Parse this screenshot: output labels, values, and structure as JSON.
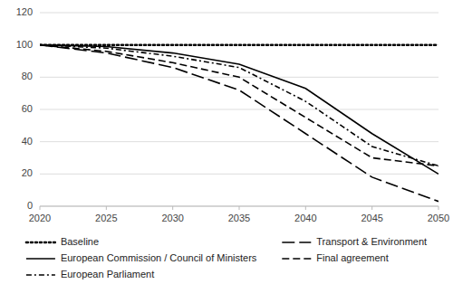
{
  "chart_data": {
    "type": "line",
    "x": [
      2020,
      2025,
      2030,
      2035,
      2040,
      2045,
      2050
    ],
    "series": [
      {
        "name": "Baseline",
        "color": "#000000",
        "line_style": "dotted",
        "values": [
          100,
          100,
          100,
          100,
          100,
          100,
          100
        ]
      },
      {
        "name": "European Commission / Council of Ministers",
        "color": "#000000",
        "line_style": "solid",
        "values": [
          100,
          99,
          95,
          88,
          73,
          45,
          20
        ]
      },
      {
        "name": "European Parliament",
        "color": "#000000",
        "line_style": "dashdot",
        "values": [
          100,
          98,
          93,
          86,
          65,
          37,
          25
        ]
      },
      {
        "name": "Transport & Environment",
        "color": "#000000",
        "line_style": "longdash",
        "values": [
          100,
          95,
          86,
          72,
          45,
          18,
          3
        ]
      },
      {
        "name": "Final agreement",
        "color": "#000000",
        "line_style": "dashed",
        "values": [
          100,
          96,
          89,
          80,
          55,
          30,
          25
        ]
      }
    ],
    "xlim": [
      2020,
      2050
    ],
    "ylim": [
      0,
      120
    ],
    "xticks": [
      2020,
      2025,
      2030,
      2035,
      2040,
      2045,
      2050
    ],
    "yticks": [
      0,
      20,
      40,
      60,
      80,
      100,
      120
    ],
    "grid": true,
    "legend": "bottom"
  }
}
